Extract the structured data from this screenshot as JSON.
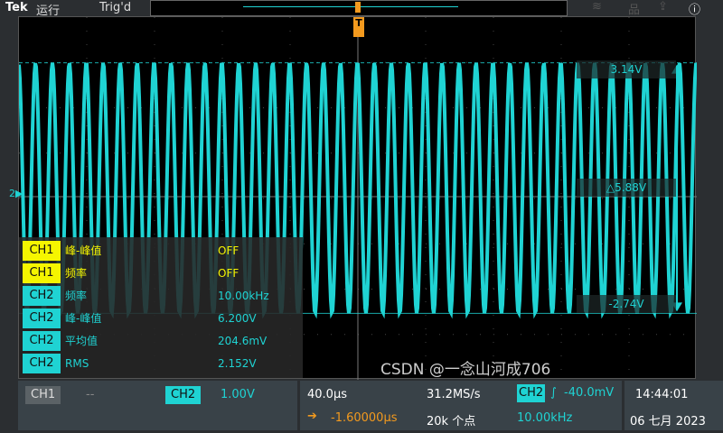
{
  "header": {
    "brand": "Tek",
    "run_state": "运行",
    "trigger_state": "Trig'd",
    "icons": [
      "wifi-icon",
      "network-icon",
      "export-icon",
      "help-icon"
    ]
  },
  "colors": {
    "ch1": "#f5f500",
    "ch2": "#1fd3d3",
    "trigger": "#f39a1e"
  },
  "waveform": {
    "channel": "CH2",
    "frequency_khz": 10.0,
    "max_v": 3.14,
    "min_v": -2.74
  },
  "cursors": {
    "top": "3.14V",
    "delta": "△5.88V",
    "bottom": "-2.74V"
  },
  "measurements": [
    {
      "ch": "CH1",
      "name": "峰-峰值",
      "value": "OFF"
    },
    {
      "ch": "CH1",
      "name": "频率",
      "value": "OFF"
    },
    {
      "ch": "CH2",
      "name": "频率",
      "value": "10.00kHz"
    },
    {
      "ch": "CH2",
      "name": "峰-峰值",
      "value": "6.200V"
    },
    {
      "ch": "CH2",
      "name": "平均值",
      "value": "204.6mV"
    },
    {
      "ch": "CH2",
      "name": "RMS",
      "value": "2.152V"
    }
  ],
  "bottom": {
    "ch1_label": "CH1",
    "ch1_scale": "--",
    "ch2_label": "CH2",
    "ch2_scale": "1.00V",
    "timebase": "40.0µs",
    "sample_rate": "31.2MS/s",
    "trigger_ch": "CH2",
    "trigger_level": "-40.0mV",
    "delay": "-1.60000µs",
    "record_length": "20k 个点",
    "trigger_freq": "10.00kHz",
    "time": "14:44:01",
    "date": "06 七月 2023"
  },
  "watermark": "CSDN @一念山河成706"
}
